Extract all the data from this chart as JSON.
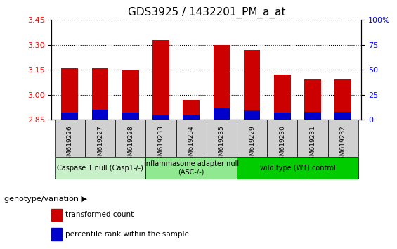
{
  "title": "GDS3925 / 1432201_PM_a_at",
  "samples": [
    "GSM619226",
    "GSM619227",
    "GSM619228",
    "GSM619233",
    "GSM619234",
    "GSM619235",
    "GSM619229",
    "GSM619230",
    "GSM619231",
    "GSM619232"
  ],
  "transformed_count": [
    3.16,
    3.16,
    3.15,
    3.33,
    2.97,
    3.3,
    3.27,
    3.12,
    3.09,
    3.09
  ],
  "percentile_rank": [
    7,
    10,
    7,
    5,
    5,
    11,
    9,
    7,
    8,
    8
  ],
  "ymin": 2.85,
  "ymax": 3.45,
  "yticks_left": [
    2.85,
    3.0,
    3.15,
    3.3,
    3.45
  ],
  "yticks_right": [
    0,
    25,
    50,
    75,
    100
  ],
  "groups": [
    {
      "label": "Caspase 1 null (Casp1-/-)",
      "start": 0,
      "end": 3,
      "color": "#c8f0c8"
    },
    {
      "label": "inflammasome adapter null\n(ASC-/-)",
      "start": 3,
      "end": 6,
      "color": "#90e890"
    },
    {
      "label": "wild type (WT) control",
      "start": 6,
      "end": 10,
      "color": "#00cc00"
    }
  ],
  "bar_color_red": "#cc0000",
  "bar_color_blue": "#0000cc",
  "bar_width": 0.55,
  "legend_red": "transformed count",
  "legend_blue": "percentile rank within the sample",
  "xlabel_left": "genotype/variation",
  "title_fontsize": 11,
  "tick_fontsize": 8,
  "label_fontsize": 8
}
